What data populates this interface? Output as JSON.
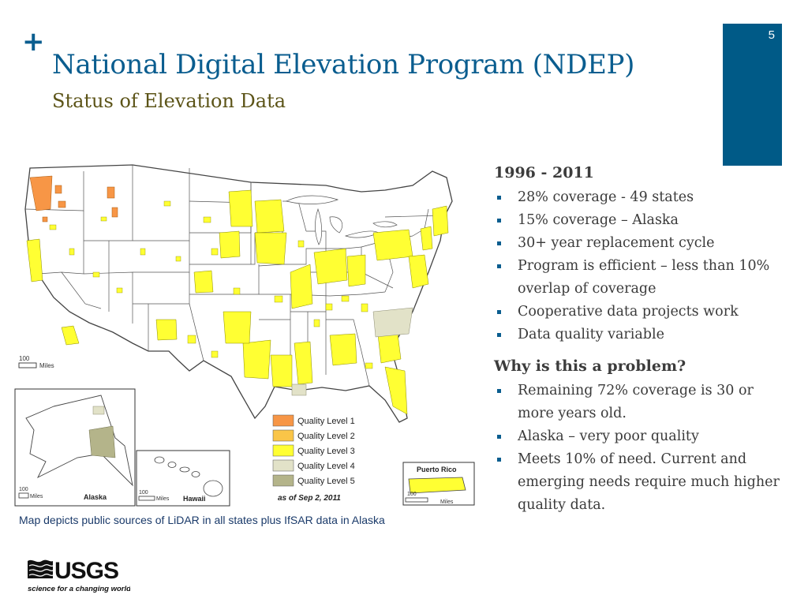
{
  "slide": {
    "title": "National Digital Elevation Program (NDEP)",
    "subtitle": "Status of Elevation Data",
    "page_number": "5",
    "plus_symbol": "+"
  },
  "map": {
    "legend": [
      {
        "label": "Quality Level 1",
        "color": "#f79646"
      },
      {
        "label": "Quality Level 2",
        "color": "#fac548"
      },
      {
        "label": "Quality Level 3",
        "color": "#ffff33"
      },
      {
        "label": "Quality Level 4",
        "color": "#e2e2c8"
      },
      {
        "label": "Quality Level 5",
        "color": "#b4b48a"
      }
    ],
    "date_label": "as of Sep 2, 2011",
    "scale_main": {
      "value": "100",
      "unit": "Miles"
    },
    "scale_alaska": {
      "value": "100",
      "unit": "Miles"
    },
    "scale_hawaii": {
      "value": "100",
      "unit": "Miles"
    },
    "scale_pr": {
      "value": "100",
      "unit": "Miles"
    },
    "inset_alaska": "Alaska",
    "inset_hawaii": "Hawaii",
    "inset_pr": "Puerto Rico",
    "caption": "Map depicts public sources of LiDAR in all states plus IfSAR data in Alaska"
  },
  "content": {
    "section1": {
      "heading": "1996 - 2011",
      "bullets": [
        "28% coverage - 49 states",
        "15% coverage – Alaska",
        "30+ year replacement cycle",
        "Program is efficient – less than 10% overlap of coverage",
        "Cooperative data projects work",
        "Data quality variable"
      ]
    },
    "section2": {
      "heading": "Why is this a problem?",
      "bullets": [
        "Remaining 72% coverage is 30 or more years old.",
        "Alaska – very poor quality",
        "Meets 10% of need. Current and emerging needs require much higher quality data."
      ]
    }
  },
  "logo": {
    "name": "USGS",
    "tagline": "science for a changing world"
  },
  "colors": {
    "title_blue": "#0a5d8f",
    "subtitle_olive": "#5c5418",
    "page_block": "#005a87"
  }
}
